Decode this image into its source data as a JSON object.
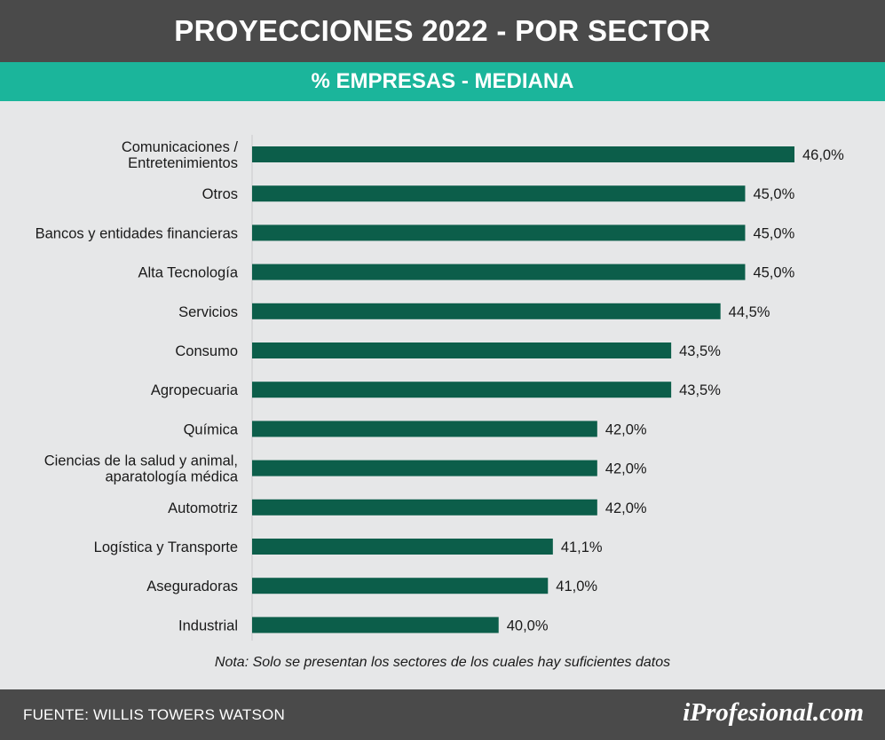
{
  "header": {
    "title": "PROYECCIONES 2022 - POR SECTOR",
    "subtitle": "% EMPRESAS - MEDIANA"
  },
  "chart_data": {
    "type": "bar",
    "orientation": "horizontal",
    "categories": [
      [
        "Comunicaciones /",
        "Entretenimientos"
      ],
      [
        "Otros"
      ],
      [
        "Bancos y entidades financieras"
      ],
      [
        "Alta Tecnología"
      ],
      [
        "Servicios"
      ],
      [
        "Consumo"
      ],
      [
        "Agropecuaria"
      ],
      [
        "Química"
      ],
      [
        "Ciencias de la salud y animal,",
        "aparatología médica"
      ],
      [
        "Automotriz"
      ],
      [
        "Logística y Transporte"
      ],
      [
        "Aseguradoras"
      ],
      [
        "Industrial"
      ]
    ],
    "values": [
      46.0,
      45.0,
      45.0,
      45.0,
      44.5,
      43.5,
      43.5,
      42.0,
      42.0,
      42.0,
      41.1,
      41.0,
      40.0
    ],
    "value_labels": [
      "46,0%",
      "45,0%",
      "45,0%",
      "45,0%",
      "44,5%",
      "43,5%",
      "43,5%",
      "42,0%",
      "42,0%",
      "42,0%",
      "41,1%",
      "41,0%",
      "40,0%"
    ],
    "xlim": [
      35,
      46
    ],
    "bar_color": "#0c5e4a",
    "grid": false
  },
  "note": "Nota: Solo se presentan los sectores de los cuales hay suficientes datos",
  "footer": {
    "source": "FUENTE:  WILLIS TOWERS WATSON",
    "brand": "iProfesional.com"
  },
  "colors": {
    "header_bg": "#4a4a4a",
    "subtitle_bg": "#1bb59b",
    "background": "#e6e7e8",
    "bar": "#0c5e4a"
  }
}
